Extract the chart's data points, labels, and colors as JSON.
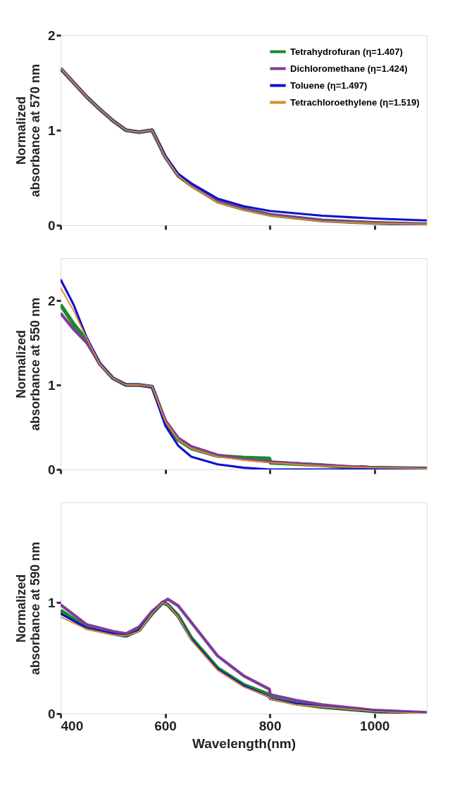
{
  "chart_data": [
    {
      "type": "line",
      "ylabel": "Normalized absorbance at 570 nm",
      "xlim": [
        400,
        1100
      ],
      "xticks": [
        400,
        600,
        800,
        1000
      ],
      "ylim": [
        0,
        2
      ],
      "yticks": [
        0,
        1,
        2
      ],
      "tick_labels": "y",
      "legend": "top right",
      "grid": false,
      "marker": "none",
      "line_style": "solid",
      "x": [
        400,
        425,
        450,
        475,
        500,
        525,
        550,
        575,
        600,
        625,
        650,
        700,
        750,
        800,
        900,
        1000,
        1100
      ],
      "series": [
        {
          "name": "Tetrahydrofuran (η=1.407)",
          "color": "#1a8a2a",
          "values": [
            1.65,
            1.5,
            1.35,
            1.22,
            1.1,
            1.0,
            0.98,
            1.0,
            0.72,
            0.52,
            0.42,
            0.25,
            0.17,
            0.11,
            0.05,
            0.025,
            0.01
          ]
        },
        {
          "name": "Dichloromethane (η=1.424)",
          "color": "#7e3f98",
          "values": [
            1.65,
            1.5,
            1.35,
            1.22,
            1.1,
            1.0,
            0.98,
            1.0,
            0.72,
            0.52,
            0.42,
            0.25,
            0.17,
            0.11,
            0.05,
            0.025,
            0.01
          ]
        },
        {
          "name": "Toluene (η=1.497)",
          "color": "#1010d0",
          "values": [
            1.64,
            1.5,
            1.35,
            1.22,
            1.1,
            1.0,
            0.98,
            1.0,
            0.73,
            0.54,
            0.44,
            0.28,
            0.2,
            0.15,
            0.1,
            0.07,
            0.05
          ]
        },
        {
          "name": "Tetrachloroethylene (η=1.519)",
          "color": "#d98c2a",
          "values": [
            1.65,
            1.5,
            1.35,
            1.22,
            1.1,
            1.0,
            0.98,
            1.0,
            0.72,
            0.52,
            0.41,
            0.24,
            0.16,
            0.1,
            0.04,
            0.02,
            0.01
          ]
        }
      ]
    },
    {
      "type": "line",
      "ylabel": "Normalized absorbance at 550 nm",
      "xlim": [
        400,
        1100
      ],
      "xticks": [
        400,
        600,
        800,
        1000
      ],
      "ylim": [
        0,
        2.5
      ],
      "yticks": [
        0,
        1,
        2
      ],
      "tick_labels": "y",
      "legend": "top right",
      "grid": false,
      "marker": "none",
      "line_style": "solid",
      "x": [
        400,
        425,
        450,
        475,
        500,
        525,
        550,
        575,
        600,
        625,
        650,
        700,
        750,
        800,
        900,
        1000,
        1100
      ],
      "series": [
        {
          "name": "Tetrahydrofuran (η=1.407)",
          "color": "#1a8a2a",
          "x": [
            400,
            425,
            450,
            475,
            500,
            525,
            550,
            575,
            600,
            625,
            650,
            700,
            750,
            799,
            801,
            900,
            960,
            975,
            990,
            1100
          ],
          "values": [
            1.95,
            1.72,
            1.53,
            1.25,
            1.08,
            1.0,
            1.0,
            0.98,
            0.57,
            0.35,
            0.25,
            0.16,
            0.14,
            0.13,
            0.08,
            0.05,
            0.02,
            0.03,
            0.02,
            0.01
          ]
        },
        {
          "name": "Dichloromethane (η=1.424)",
          "color": "#7e3f98",
          "values": [
            1.85,
            1.66,
            1.5,
            1.25,
            1.08,
            1.0,
            1.0,
            0.98,
            0.58,
            0.37,
            0.27,
            0.17,
            0.12,
            0.09,
            0.05,
            0.02,
            0.01
          ]
        },
        {
          "name": "Toluene (η=1.497)",
          "color": "#1010d0",
          "values": [
            2.25,
            1.95,
            1.56,
            1.26,
            1.08,
            1.0,
            1.0,
            0.97,
            0.52,
            0.28,
            0.15,
            0.06,
            0.02,
            0.0,
            0.0,
            0.0,
            0.01
          ]
        },
        {
          "name": "Tetrachloroethylene (η=1.519)",
          "color": "#d98c2a",
          "values": [
            2.15,
            1.88,
            1.55,
            1.25,
            1.08,
            1.0,
            1.0,
            0.98,
            0.57,
            0.35,
            0.25,
            0.15,
            0.11,
            0.08,
            0.04,
            0.02,
            0.01
          ]
        }
      ]
    },
    {
      "type": "line",
      "ylabel": "Normalized absorbance at 590 nm",
      "xlabel": "Wavelength(nm)",
      "xlim": [
        400,
        1100
      ],
      "xticks": [
        400,
        600,
        800,
        1000
      ],
      "ylim": [
        0,
        1.9
      ],
      "yticks": [
        0,
        1
      ],
      "legend": "top right",
      "grid": false,
      "marker": "none",
      "line_style": "solid",
      "x": [
        400,
        450,
        500,
        525,
        550,
        575,
        595,
        605,
        625,
        650,
        700,
        750,
        799,
        801,
        850,
        900,
        1000,
        1100
      ],
      "series": [
        {
          "name": "Tetrahydrofuran (η=1.407)",
          "color": "#1a8a2a",
          "values": [
            0.93,
            0.77,
            0.72,
            0.7,
            0.75,
            0.9,
            1.0,
            0.98,
            0.88,
            0.68,
            0.41,
            0.26,
            0.17,
            0.14,
            0.09,
            0.06,
            0.02,
            0.0
          ]
        },
        {
          "name": "Dichloromethane (η=1.424)",
          "color": "#7e3f98",
          "values": [
            0.98,
            0.8,
            0.74,
            0.72,
            0.78,
            0.92,
            1.0,
            1.03,
            0.97,
            0.82,
            0.52,
            0.34,
            0.22,
            0.17,
            0.12,
            0.08,
            0.03,
            0.01
          ]
        },
        {
          "name": "Toluene (η=1.497)",
          "color": "#1010d0",
          "values": [
            0.9,
            0.77,
            0.72,
            0.7,
            0.75,
            0.9,
            1.0,
            0.98,
            0.87,
            0.67,
            0.4,
            0.25,
            0.15,
            0.13,
            0.09,
            0.06,
            0.02,
            0.0
          ]
        },
        {
          "name": "Tetrachloroethylene (η=1.519)",
          "color": "#d98c2a",
          "values": [
            0.87,
            0.76,
            0.71,
            0.7,
            0.74,
            0.9,
            1.0,
            0.98,
            0.87,
            0.66,
            0.39,
            0.24,
            0.15,
            0.13,
            0.08,
            0.06,
            0.02,
            0.0
          ]
        }
      ]
    }
  ]
}
